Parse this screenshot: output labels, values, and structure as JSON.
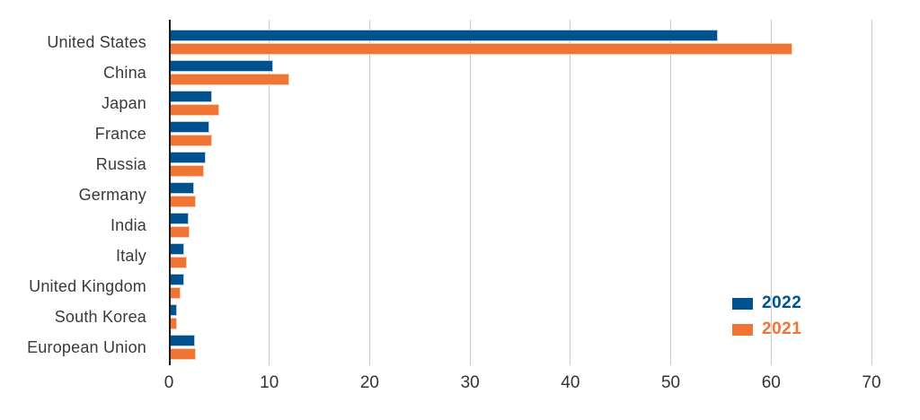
{
  "chart_data": {
    "type": "bar",
    "orientation": "horizontal",
    "title": "",
    "categories": [
      "United States",
      "China",
      "Japan",
      "France",
      "Russia",
      "Germany",
      "India",
      "Italy",
      "United Kingdom",
      "South Korea",
      "European Union"
    ],
    "series": [
      {
        "name": "2022",
        "color": "#00528F",
        "edge_color": "#b2cbe2",
        "values": [
          54.6,
          10.3,
          4.2,
          3.9,
          3.6,
          2.4,
          1.9,
          1.4,
          1.4,
          0.7,
          2.5
        ]
      },
      {
        "name": "2021",
        "color": "#F07434",
        "edge_color": "#f8cfae",
        "values": [
          62.0,
          11.9,
          4.9,
          4.2,
          3.4,
          2.6,
          2.0,
          1.7,
          1.1,
          0.7,
          2.6
        ]
      }
    ],
    "xlim": [
      0,
      70
    ],
    "xticks": [
      0,
      10,
      20,
      30,
      40,
      50,
      60,
      70
    ],
    "grid": true,
    "gridline_interval": 10,
    "legend_position": "bottom-right"
  },
  "colors": {
    "background": "#ffffff",
    "gridline": "#c9c9c9",
    "zero_axis": "#1c1c1c",
    "category_label": "#3a3a3a",
    "tick_label": "#333333"
  },
  "legend": {
    "items": [
      {
        "label": "2022"
      },
      {
        "label": "2021"
      }
    ]
  }
}
